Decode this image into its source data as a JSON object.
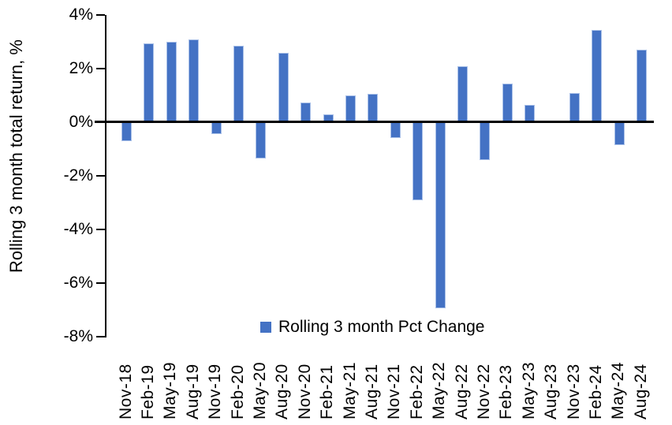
{
  "chart_data": {
    "type": "bar",
    "title": "",
    "xlabel": "",
    "ylabel": "Rolling 3 month total return, %",
    "categories": [
      "Nov-18",
      "Feb-19",
      "May-19",
      "Aug-19",
      "Nov-19",
      "Feb-20",
      "May-20",
      "Aug-20",
      "Nov-20",
      "Feb-21",
      "May-21",
      "Aug-21",
      "Nov-21",
      "Feb-22",
      "May-22",
      "Aug-22",
      "Nov-22",
      "Feb-23",
      "May-23",
      "Aug-23",
      "Nov-23",
      "Feb-24",
      "May-24",
      "Aug-24"
    ],
    "values": [
      -0.7,
      2.95,
      3.0,
      3.1,
      -0.45,
      2.85,
      -1.35,
      2.6,
      0.75,
      0.3,
      1.0,
      1.05,
      -0.6,
      -2.9,
      -6.95,
      2.1,
      -1.4,
      1.45,
      0.65,
      0.0,
      1.1,
      3.45,
      -0.85,
      2.7
    ],
    "ylim": [
      -8,
      4
    ],
    "ytick_values": [
      4,
      2,
      0,
      -2,
      -4,
      -6,
      -8
    ],
    "ytick_labels": [
      "4%",
      "2%",
      "0%",
      "-2%",
      "-4%",
      "-6%",
      "-8%"
    ],
    "grid": false,
    "legend_position": "bottom-center",
    "legend_label": "Rolling 3 month Pct Change",
    "bar_color": "#4472C4",
    "bar_edge_color": "#a9c0e8",
    "axis_color": "#000000"
  }
}
